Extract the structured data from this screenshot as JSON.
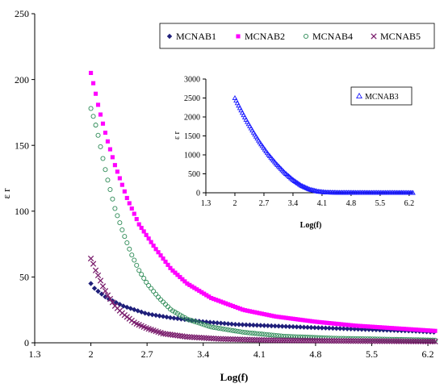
{
  "chart_data": [
    {
      "type": "scatter",
      "xlabel": "Log(f)",
      "ylabel": "ε r",
      "xlim": [
        1.3,
        6.3
      ],
      "ylim": [
        0,
        250
      ],
      "xticks": [
        "1.3",
        "2",
        "2.7",
        "3.4",
        "4.1",
        "4.8",
        "5.5",
        "6.2"
      ],
      "yticks": [
        "0",
        "50",
        "100",
        "150",
        "200",
        "250"
      ],
      "legend_position": "top-right",
      "grid": false,
      "series": [
        {
          "name": "MCNAB1",
          "marker": "diamond",
          "color": "#1f1f7a",
          "points": [
            [
              2.0,
              45
            ],
            [
              2.05,
              41
            ],
            [
              2.2,
              34
            ],
            [
              2.4,
              28
            ],
            [
              2.7,
              22
            ],
            [
              3.0,
              19
            ],
            [
              3.4,
              16
            ],
            [
              3.8,
              14
            ],
            [
              4.2,
              13
            ],
            [
              4.8,
              11.5
            ],
            [
              5.5,
              10
            ],
            [
              6.0,
              9
            ],
            [
              6.3,
              8
            ]
          ]
        },
        {
          "name": "MCNAB2",
          "marker": "square",
          "color": "#ff00ff",
          "points": [
            [
              2.0,
              205
            ],
            [
              2.05,
              192
            ],
            [
              2.1,
              178
            ],
            [
              2.2,
              155
            ],
            [
              2.3,
              135
            ],
            [
              2.45,
              110
            ],
            [
              2.6,
              90
            ],
            [
              2.8,
              72
            ],
            [
              3.0,
              56
            ],
            [
              3.2,
              45
            ],
            [
              3.5,
              34
            ],
            [
              3.9,
              25
            ],
            [
              4.3,
              20
            ],
            [
              4.8,
              16
            ],
            [
              5.3,
              13
            ],
            [
              5.8,
              11
            ],
            [
              6.3,
              9
            ]
          ]
        },
        {
          "name": "MCNAB4",
          "marker": "circle",
          "color": "#2e8b57",
          "points": [
            [
              2.0,
              178
            ],
            [
              2.05,
              168
            ],
            [
              2.1,
              155
            ],
            [
              2.15,
              140
            ],
            [
              2.2,
              126
            ],
            [
              2.3,
              102
            ],
            [
              2.4,
              84
            ],
            [
              2.5,
              68
            ],
            [
              2.6,
              55
            ],
            [
              2.7,
              45
            ],
            [
              2.85,
              34
            ],
            [
              3.0,
              25
            ],
            [
              3.2,
              18
            ],
            [
              3.5,
              12
            ],
            [
              3.9,
              8
            ],
            [
              4.4,
              5
            ],
            [
              5.0,
              3.5
            ],
            [
              6.3,
              2
            ]
          ]
        },
        {
          "name": "MCNAB5",
          "marker": "x",
          "color": "#7b1f6e",
          "points": [
            [
              2.0,
              64
            ],
            [
              2.03,
              60
            ],
            [
              2.06,
              55
            ],
            [
              2.1,
              50
            ],
            [
              2.15,
              43
            ],
            [
              2.2,
              37
            ],
            [
              2.3,
              28
            ],
            [
              2.4,
              22
            ],
            [
              2.55,
              15
            ],
            [
              2.7,
              11
            ],
            [
              2.9,
              7
            ],
            [
              3.2,
              4.5
            ],
            [
              3.6,
              3
            ],
            [
              4.2,
              2
            ],
            [
              5.0,
              1.5
            ],
            [
              6.3,
              1
            ]
          ]
        }
      ]
    },
    {
      "type": "scatter",
      "xlabel": "Log(f)",
      "ylabel": "ε r",
      "xlim": [
        1.3,
        6.3
      ],
      "ylim": [
        0,
        3000
      ],
      "xticks": [
        "1.3",
        "2",
        "2.7",
        "3.4",
        "4.1",
        "4.8",
        "5.5",
        "6.2"
      ],
      "yticks": [
        "0",
        "500",
        "1000",
        "1500",
        "2000",
        "2500",
        "3000"
      ],
      "legend_position": "top-right",
      "grid": false,
      "series": [
        {
          "name": "MCNAB3",
          "marker": "triangle",
          "color": "#1a1aff",
          "points": [
            [
              2.0,
              2500
            ],
            [
              2.1,
              2280
            ],
            [
              2.2,
              2070
            ],
            [
              2.3,
              1870
            ],
            [
              2.45,
              1590
            ],
            [
              2.6,
              1330
            ],
            [
              2.8,
              1020
            ],
            [
              3.0,
              760
            ],
            [
              3.2,
              530
            ],
            [
              3.4,
              340
            ],
            [
              3.6,
              190
            ],
            [
              3.8,
              90
            ],
            [
              4.0,
              35
            ],
            [
              4.2,
              12
            ],
            [
              4.5,
              5
            ],
            [
              5.0,
              3
            ],
            [
              5.5,
              2
            ],
            [
              6.0,
              1
            ],
            [
              6.3,
              0
            ]
          ]
        }
      ]
    }
  ]
}
